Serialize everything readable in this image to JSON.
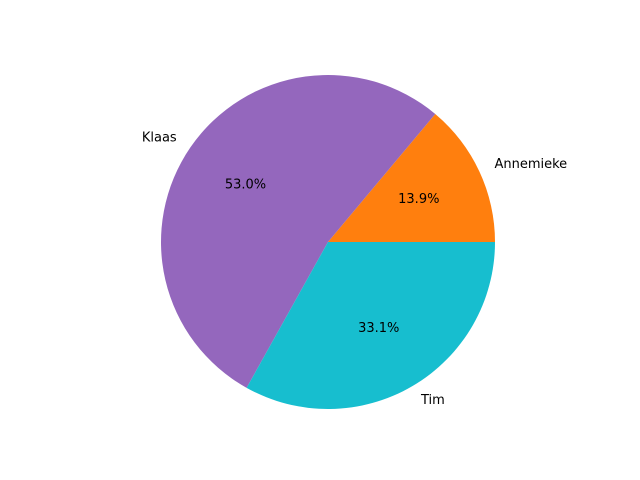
{
  "chart_data": {
    "type": "pie",
    "labels": [
      "Annemieke",
      "Klaas",
      "Tim"
    ],
    "values": [
      13.9,
      53.0,
      33.1
    ],
    "percent_labels": [
      "13.9%",
      "53.0%",
      "33.1%"
    ],
    "colors": [
      "#ff7f0e",
      "#9467bd",
      "#17becf"
    ],
    "start_angle_deg": 0,
    "direction": "counterclockwise",
    "legend": "none"
  }
}
